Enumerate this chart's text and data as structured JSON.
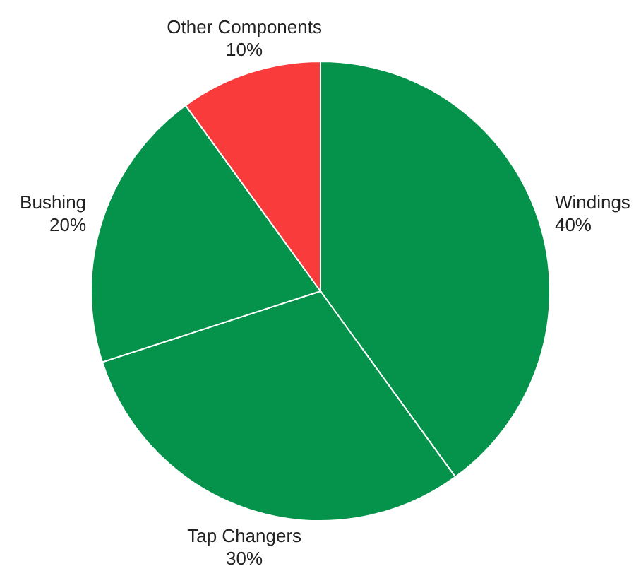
{
  "chart_data": {
    "type": "pie",
    "categories": [
      "Windings",
      "Tap Changers",
      "Bushing",
      "Other Components"
    ],
    "values": [
      40,
      30,
      20,
      10
    ],
    "colors": [
      "#05924a",
      "#05924a",
      "#05924a",
      "#f93b3c"
    ],
    "value_labels": [
      "40%",
      "30%",
      "20%",
      "10%"
    ],
    "legend": false
  }
}
